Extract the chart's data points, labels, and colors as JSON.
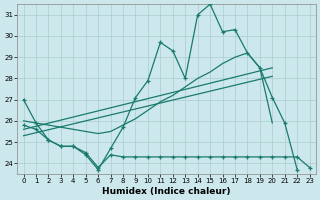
{
  "xlabel": "Humidex (Indice chaleur)",
  "background_color": "#cce8ec",
  "grid_color": "#aacccc",
  "line_color": "#1a7a6e",
  "xlim": [
    -0.5,
    23.5
  ],
  "ylim": [
    23.5,
    31.5
  ],
  "xticks": [
    0,
    1,
    2,
    3,
    4,
    5,
    6,
    7,
    8,
    9,
    10,
    11,
    12,
    13,
    14,
    15,
    16,
    17,
    18,
    19,
    20,
    21,
    22,
    23
  ],
  "yticks": [
    24,
    25,
    26,
    27,
    28,
    29,
    30,
    31
  ],
  "line1_x": [
    0,
    1,
    2,
    3,
    4,
    5,
    6,
    7,
    8,
    9,
    10,
    11,
    12,
    13,
    14,
    15,
    16,
    17,
    18,
    19,
    20,
    21,
    22
  ],
  "line1_y": [
    27.0,
    25.9,
    25.1,
    24.8,
    24.8,
    24.4,
    23.7,
    24.7,
    25.7,
    27.1,
    27.9,
    29.7,
    29.3,
    28.0,
    31.0,
    31.5,
    30.2,
    30.3,
    29.2,
    28.5,
    27.1,
    25.9,
    23.7
  ],
  "line2_x": [
    0,
    1,
    2,
    3,
    4,
    5,
    6,
    7,
    8,
    9,
    10,
    11,
    12,
    13,
    14,
    15,
    16,
    17,
    18,
    19,
    20
  ],
  "line2_y": [
    26.0,
    25.9,
    25.8,
    25.7,
    25.6,
    25.5,
    25.4,
    25.5,
    25.8,
    26.1,
    26.5,
    26.9,
    27.2,
    27.6,
    28.0,
    28.3,
    28.7,
    29.0,
    29.2,
    28.5,
    25.9
  ],
  "regline1_x": [
    0,
    20
  ],
  "regline1_y": [
    25.6,
    28.5
  ],
  "regline2_x": [
    0,
    20
  ],
  "regline2_y": [
    25.3,
    28.1
  ],
  "line4_x": [
    0,
    1,
    2,
    3,
    4,
    5,
    6,
    7,
    8,
    9,
    10,
    11,
    12,
    13,
    14,
    15,
    16,
    17,
    18,
    19,
    20,
    21,
    22,
    23
  ],
  "line4_y": [
    25.8,
    25.6,
    25.1,
    24.8,
    24.8,
    24.5,
    23.8,
    24.4,
    24.3,
    24.3,
    24.3,
    24.3,
    24.3,
    24.3,
    24.3,
    24.3,
    24.3,
    24.3,
    24.3,
    24.3,
    24.3,
    24.3,
    24.3,
    23.8
  ]
}
